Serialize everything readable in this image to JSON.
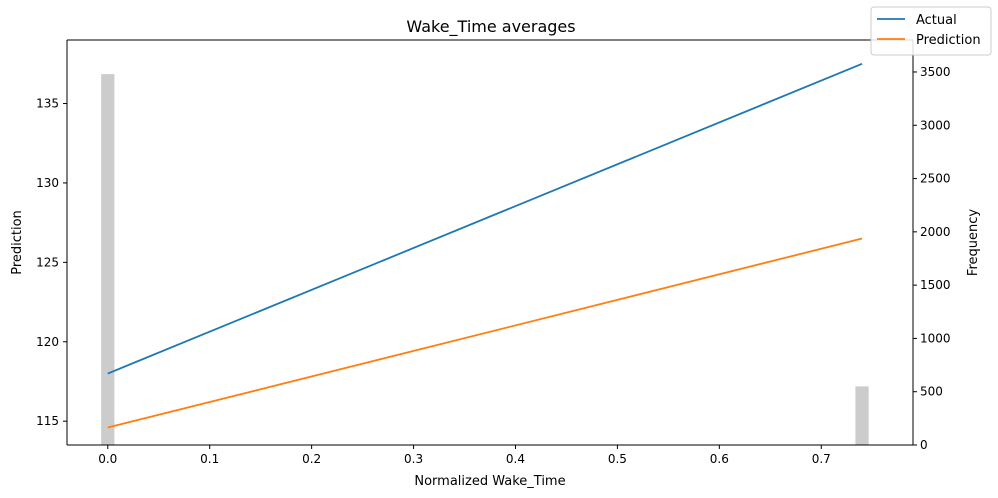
{
  "chart_data": {
    "type": "line",
    "title": "Wake_Time averages",
    "xlabel": "Normalized Wake_Time",
    "ylabel": "Prediction",
    "ylabel_right": "Frequency",
    "xlim": [
      -0.04,
      0.79
    ],
    "ylim": [
      113.5,
      139.0
    ],
    "ylim_right": [
      0,
      3800
    ],
    "xticks": [
      0.0,
      0.1,
      0.2,
      0.3,
      0.4,
      0.5,
      0.6,
      0.7
    ],
    "xtick_labels": [
      "0.0",
      "0.1",
      "0.2",
      "0.3",
      "0.4",
      "0.5",
      "0.6",
      "0.7"
    ],
    "yticks": [
      115,
      120,
      125,
      130,
      135
    ],
    "ytick_labels": [
      "115",
      "120",
      "125",
      "130",
      "135"
    ],
    "yticks_right": [
      0,
      500,
      1000,
      1500,
      2000,
      2500,
      3000,
      3500
    ],
    "ytick_labels_right": [
      "0",
      "500",
      "1000",
      "1500",
      "2000",
      "2500",
      "3000",
      "3500"
    ],
    "grid": false,
    "legend_position": "top-right",
    "series": [
      {
        "name": "Actual",
        "color": "#1f77b4",
        "x": [
          0.0,
          0.74
        ],
        "y": [
          118.0,
          137.5
        ]
      },
      {
        "name": "Prediction",
        "color": "#ff7f0e",
        "x": [
          0.0,
          0.74
        ],
        "y": [
          114.6,
          126.5
        ]
      }
    ],
    "histogram": {
      "color": "#cccccc",
      "bin_width": 0.013,
      "bins": [
        {
          "x": 0.0,
          "frequency": 3480
        },
        {
          "x": 0.74,
          "frequency": 550
        }
      ]
    }
  }
}
